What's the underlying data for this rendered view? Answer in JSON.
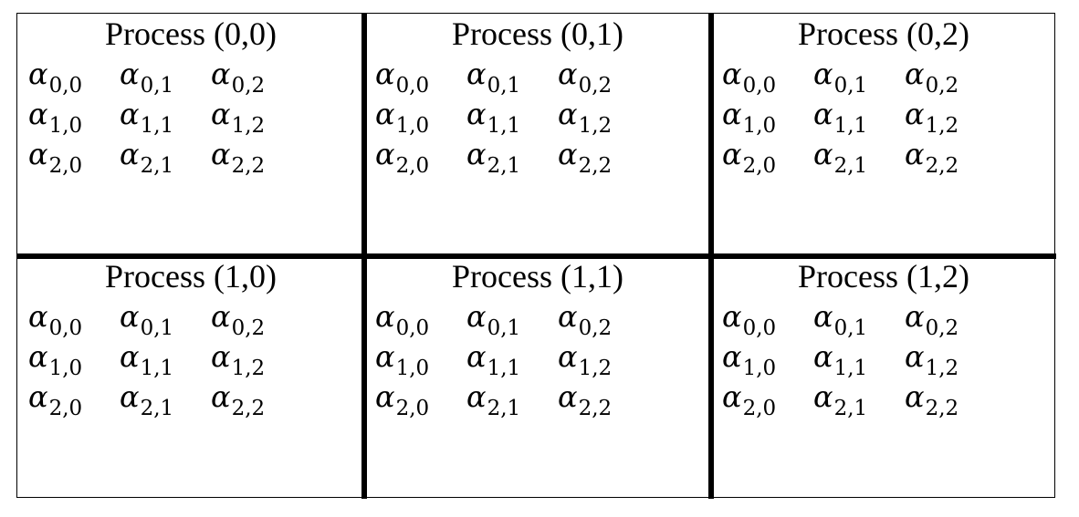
{
  "grid": {
    "rows": 2,
    "cols": 3,
    "processes": [
      [
        {
          "title": "Process (0,0)"
        },
        {
          "title": "Process (0,1)"
        },
        {
          "title": "Process (0,2)"
        }
      ],
      [
        {
          "title": "Process (1,0)"
        },
        {
          "title": "Process (1,1)"
        },
        {
          "title": "Process (1,2)"
        }
      ]
    ],
    "symbol": "α",
    "entries": [
      [
        "0,0",
        "0,1",
        "0,2"
      ],
      [
        "1,0",
        "1,1",
        "1,2"
      ],
      [
        "2,0",
        "2,1",
        "2,2"
      ]
    ]
  }
}
